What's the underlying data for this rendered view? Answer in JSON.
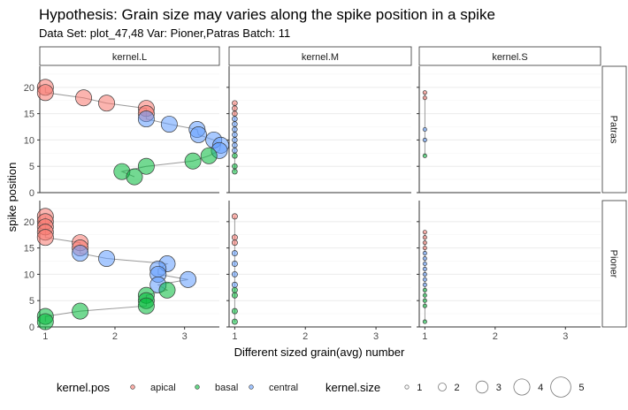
{
  "chart_data": {
    "type": "scatter",
    "title": "Hypothesis: Grain size may varies along the spike position in a spike",
    "subtitle": "Data Set: plot_47,48  Var: Pioner,Patras Batch: 11",
    "xlabel": "Different sized grain(avg) number",
    "ylabel": "spike position",
    "xlim": [
      0.92,
      3.5
    ],
    "ylim": [
      0,
      24
    ],
    "x_ticks": [
      1,
      2,
      3
    ],
    "y_ticks": [
      0,
      5,
      10,
      15,
      20
    ],
    "grid": true,
    "column_facets": [
      "kernel.L",
      "kernel.M",
      "kernel.S"
    ],
    "row_facets": [
      "Patras",
      "Pioner"
    ],
    "colors": {
      "apical": "#F8766D",
      "basal": "#00BA38",
      "central": "#619CFF"
    },
    "legend": {
      "position": "bottom",
      "color_title": "kernel.pos",
      "color_entries": [
        "apical",
        "basal",
        "central"
      ],
      "size_title": "kernel.size",
      "size_entries": [
        "1",
        "2",
        "3",
        "4",
        "5"
      ]
    },
    "panels": [
      {
        "col": "kernel.L",
        "row": "Patras",
        "size": 4,
        "points": [
          {
            "x": 1.0,
            "y": 20,
            "pos": "apical"
          },
          {
            "x": 1.0,
            "y": 19,
            "pos": "apical"
          },
          {
            "x": 1.55,
            "y": 18,
            "pos": "apical"
          },
          {
            "x": 1.88,
            "y": 17,
            "pos": "apical"
          },
          {
            "x": 2.45,
            "y": 16,
            "pos": "apical"
          },
          {
            "x": 2.45,
            "y": 15,
            "pos": "apical"
          },
          {
            "x": 2.45,
            "y": 14,
            "pos": "central"
          },
          {
            "x": 2.78,
            "y": 13,
            "pos": "central"
          },
          {
            "x": 3.18,
            "y": 12,
            "pos": "central"
          },
          {
            "x": 3.2,
            "y": 11,
            "pos": "central"
          },
          {
            "x": 3.42,
            "y": 10,
            "pos": "central"
          },
          {
            "x": 3.52,
            "y": 9,
            "pos": "central"
          },
          {
            "x": 3.5,
            "y": 8,
            "pos": "central"
          },
          {
            "x": 3.35,
            "y": 7,
            "pos": "basal"
          },
          {
            "x": 3.12,
            "y": 6,
            "pos": "basal"
          },
          {
            "x": 2.45,
            "y": 5,
            "pos": "basal"
          },
          {
            "x": 2.1,
            "y": 4,
            "pos": "basal"
          },
          {
            "x": 2.28,
            "y": 3,
            "pos": "basal"
          }
        ]
      },
      {
        "col": "kernel.M",
        "row": "Patras",
        "size": 1.3,
        "points": [
          {
            "x": 1,
            "y": 17,
            "pos": "apical"
          },
          {
            "x": 1,
            "y": 16,
            "pos": "apical"
          },
          {
            "x": 1,
            "y": 15,
            "pos": "apical"
          },
          {
            "x": 1,
            "y": 14,
            "pos": "central"
          },
          {
            "x": 1,
            "y": 13,
            "pos": "central"
          },
          {
            "x": 1,
            "y": 12,
            "pos": "central"
          },
          {
            "x": 1,
            "y": 11,
            "pos": "central"
          },
          {
            "x": 1,
            "y": 10,
            "pos": "central"
          },
          {
            "x": 1,
            "y": 9,
            "pos": "central"
          },
          {
            "x": 1,
            "y": 8,
            "pos": "central"
          },
          {
            "x": 1,
            "y": 7,
            "pos": "basal"
          },
          {
            "x": 1,
            "y": 5,
            "pos": "basal"
          },
          {
            "x": 1,
            "y": 4,
            "pos": "basal"
          }
        ]
      },
      {
        "col": "kernel.S",
        "row": "Patras",
        "size": 1,
        "points": [
          {
            "x": 1,
            "y": 19,
            "pos": "apical"
          },
          {
            "x": 1,
            "y": 18,
            "pos": "apical"
          },
          {
            "x": 1,
            "y": 12,
            "pos": "central"
          },
          {
            "x": 1,
            "y": 10,
            "pos": "central"
          },
          {
            "x": 1,
            "y": 7,
            "pos": "basal"
          }
        ]
      },
      {
        "col": "kernel.L",
        "row": "Pioner",
        "size": 4,
        "points": [
          {
            "x": 1.0,
            "y": 21,
            "pos": "apical"
          },
          {
            "x": 1.0,
            "y": 20,
            "pos": "apical"
          },
          {
            "x": 1.0,
            "y": 19,
            "pos": "apical"
          },
          {
            "x": 1.0,
            "y": 18,
            "pos": "apical"
          },
          {
            "x": 1.0,
            "y": 17,
            "pos": "apical"
          },
          {
            "x": 1.5,
            "y": 16,
            "pos": "apical"
          },
          {
            "x": 1.5,
            "y": 15,
            "pos": "apical"
          },
          {
            "x": 1.5,
            "y": 14,
            "pos": "central"
          },
          {
            "x": 1.88,
            "y": 13,
            "pos": "central"
          },
          {
            "x": 2.75,
            "y": 12,
            "pos": "central"
          },
          {
            "x": 2.62,
            "y": 11,
            "pos": "central"
          },
          {
            "x": 2.62,
            "y": 10,
            "pos": "central"
          },
          {
            "x": 3.05,
            "y": 9,
            "pos": "central"
          },
          {
            "x": 2.62,
            "y": 8,
            "pos": "central"
          },
          {
            "x": 2.75,
            "y": 7,
            "pos": "basal"
          },
          {
            "x": 2.45,
            "y": 6,
            "pos": "basal"
          },
          {
            "x": 2.45,
            "y": 5,
            "pos": "basal"
          },
          {
            "x": 2.45,
            "y": 4,
            "pos": "basal"
          },
          {
            "x": 1.5,
            "y": 3,
            "pos": "basal"
          },
          {
            "x": 1.0,
            "y": 2,
            "pos": "basal"
          },
          {
            "x": 1.0,
            "y": 1,
            "pos": "basal"
          }
        ]
      },
      {
        "col": "kernel.M",
        "row": "Pioner",
        "size": 1.4,
        "points": [
          {
            "x": 1,
            "y": 21,
            "pos": "apical"
          },
          {
            "x": 1,
            "y": 17,
            "pos": "apical"
          },
          {
            "x": 1,
            "y": 16,
            "pos": "apical"
          },
          {
            "x": 1,
            "y": 14,
            "pos": "central"
          },
          {
            "x": 1,
            "y": 12,
            "pos": "central"
          },
          {
            "x": 1,
            "y": 10,
            "pos": "central"
          },
          {
            "x": 1,
            "y": 8,
            "pos": "central"
          },
          {
            "x": 1,
            "y": 7,
            "pos": "basal"
          },
          {
            "x": 1,
            "y": 6,
            "pos": "basal"
          },
          {
            "x": 1,
            "y": 3,
            "pos": "basal"
          },
          {
            "x": 1,
            "y": 1,
            "pos": "basal"
          }
        ]
      },
      {
        "col": "kernel.S",
        "row": "Pioner",
        "size": 1,
        "points": [
          {
            "x": 1,
            "y": 18,
            "pos": "apical"
          },
          {
            "x": 1,
            "y": 17,
            "pos": "apical"
          },
          {
            "x": 1,
            "y": 16,
            "pos": "apical"
          },
          {
            "x": 1,
            "y": 15,
            "pos": "apical"
          },
          {
            "x": 1,
            "y": 14,
            "pos": "central"
          },
          {
            "x": 1,
            "y": 13,
            "pos": "central"
          },
          {
            "x": 1,
            "y": 12,
            "pos": "central"
          },
          {
            "x": 1,
            "y": 11,
            "pos": "central"
          },
          {
            "x": 1,
            "y": 10,
            "pos": "central"
          },
          {
            "x": 1,
            "y": 9,
            "pos": "central"
          },
          {
            "x": 1,
            "y": 8,
            "pos": "central"
          },
          {
            "x": 1,
            "y": 7,
            "pos": "basal"
          },
          {
            "x": 1,
            "y": 6,
            "pos": "basal"
          },
          {
            "x": 1,
            "y": 5,
            "pos": "basal"
          },
          {
            "x": 1,
            "y": 4,
            "pos": "basal"
          },
          {
            "x": 1,
            "y": 1,
            "pos": "basal"
          }
        ]
      }
    ]
  }
}
